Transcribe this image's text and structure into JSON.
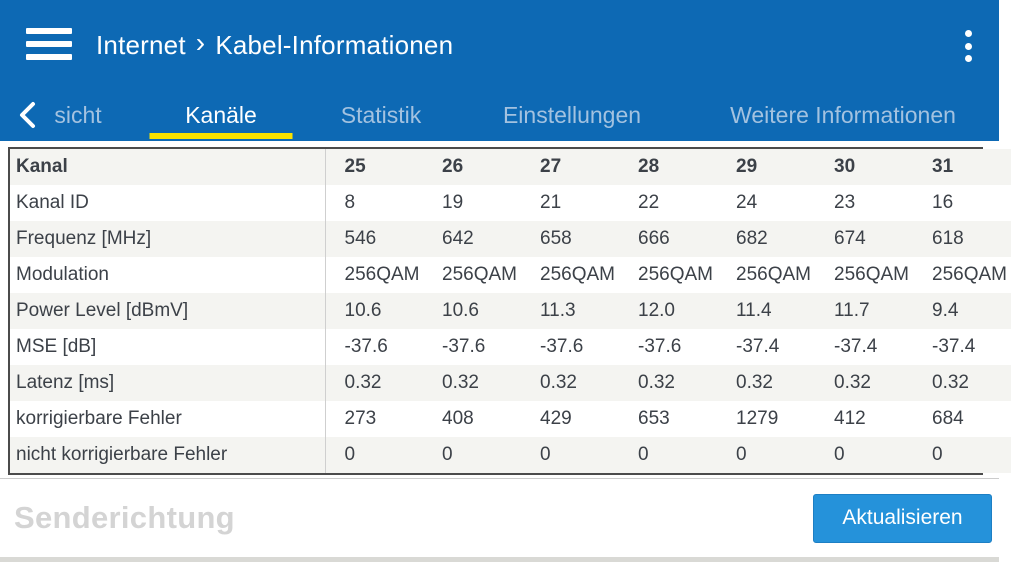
{
  "app": {
    "breadcrumb_section": "Internet",
    "breadcrumb_separator": "›",
    "breadcrumb_page": "Kabel-Informationen"
  },
  "tabs": {
    "items": [
      {
        "label": "sicht",
        "active": false
      },
      {
        "label": "Kanäle",
        "active": true
      },
      {
        "label": "Statistik",
        "active": false
      },
      {
        "label": "Einstellungen",
        "active": false
      },
      {
        "label": "Weitere Informationen",
        "active": false
      }
    ]
  },
  "table": {
    "header_label": "Kanal",
    "channels": [
      "25",
      "26",
      "27",
      "28",
      "29",
      "30",
      "31"
    ],
    "rows": [
      {
        "label": "Kanal ID",
        "values": [
          "8",
          "19",
          "21",
          "22",
          "24",
          "23",
          "16"
        ]
      },
      {
        "label": "Frequenz [MHz]",
        "values": [
          "546",
          "642",
          "658",
          "666",
          "682",
          "674",
          "618"
        ]
      },
      {
        "label": "Modulation",
        "values": [
          "256QAM",
          "256QAM",
          "256QAM",
          "256QAM",
          "256QAM",
          "256QAM",
          "256QAM"
        ]
      },
      {
        "label": "Power Level [dBmV]",
        "values": [
          "10.6",
          "10.6",
          "11.3",
          "12.0",
          "11.4",
          "11.7",
          "9.4"
        ]
      },
      {
        "label": "MSE [dB]",
        "values": [
          "-37.6",
          "-37.6",
          "-37.6",
          "-37.6",
          "-37.4",
          "-37.4",
          "-37.4"
        ]
      },
      {
        "label": "Latenz [ms]",
        "values": [
          "0.32",
          "0.32",
          "0.32",
          "0.32",
          "0.32",
          "0.32",
          "0.32"
        ]
      },
      {
        "label": "korrigierbare Fehler",
        "values": [
          "273",
          "408",
          "429",
          "653",
          "1279",
          "412",
          "684"
        ]
      },
      {
        "label": "nicht korrigierbare Fehler",
        "values": [
          "0",
          "0",
          "0",
          "0",
          "0",
          "0",
          "0"
        ]
      }
    ]
  },
  "footer": {
    "section_title": "Senderichtung",
    "refresh_label": "Aktualisieren"
  },
  "colors": {
    "header_blue": "#0d69b4",
    "active_tab_underline": "#f9e200",
    "inactive_tab_text": "#a3c2e0",
    "button_blue": "#2592da",
    "row_stripe": "#f4f4f1",
    "table_border": "#4b4b4b",
    "text": "#3c4148",
    "disabled_heading": "#d4d4d4"
  }
}
